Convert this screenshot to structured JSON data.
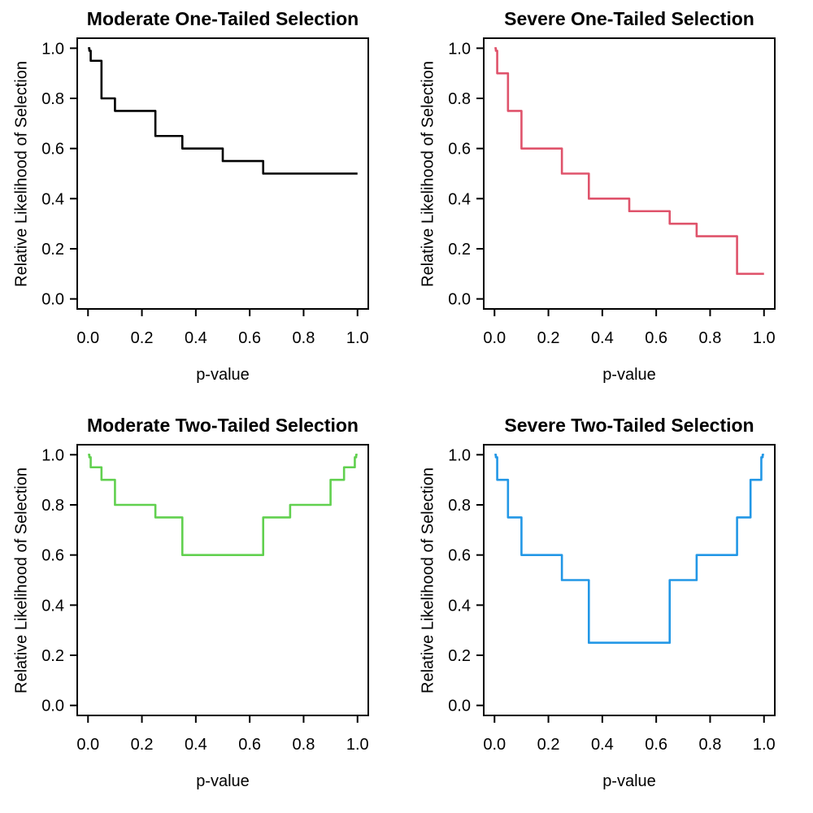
{
  "figure": {
    "background": "#ffffff",
    "grid_layout": "2x2",
    "shared_xlabel": "p-value",
    "shared_ylabel": "Relative Likelihood of Selection"
  },
  "chart_data": [
    {
      "type": "line",
      "subtype": "step",
      "title": "Moderate One-Tailed Selection",
      "xlabel": "p-value",
      "ylabel": "Relative Likelihood of Selection",
      "color": "#000000",
      "xlim": [
        0,
        1
      ],
      "ylim": [
        0,
        1
      ],
      "grid": false,
      "legend": "none",
      "xtick_values": [
        0,
        0.2,
        0.4,
        0.6,
        0.8,
        1.0
      ],
      "xtick_labels": [
        "0.0",
        "0.2",
        "0.4",
        "0.6",
        "0.8",
        "1.0"
      ],
      "ytick_values": [
        0,
        0.2,
        0.4,
        0.6,
        0.8,
        1.0
      ],
      "ytick_labels": [
        "0.0",
        "0.2",
        "0.4",
        "0.6",
        "0.8",
        "1.0"
      ],
      "p_cutpoints": [
        0,
        0.005,
        0.01,
        0.05,
        0.1,
        0.25,
        0.35,
        0.5,
        0.65,
        0.75,
        0.9,
        0.95,
        0.99,
        0.995,
        1.0
      ],
      "weights": [
        1.0,
        0.99,
        0.95,
        0.8,
        0.75,
        0.65,
        0.6,
        0.55,
        0.5,
        0.5,
        0.5,
        0.5,
        0.5,
        0.5
      ]
    },
    {
      "type": "line",
      "subtype": "step",
      "title": "Severe One-Tailed Selection",
      "xlabel": "p-value",
      "ylabel": "Relative Likelihood of Selection",
      "color": "#DF536B",
      "xlim": [
        0,
        1
      ],
      "ylim": [
        0,
        1
      ],
      "grid": false,
      "legend": "none",
      "xtick_values": [
        0,
        0.2,
        0.4,
        0.6,
        0.8,
        1.0
      ],
      "xtick_labels": [
        "0.0",
        "0.2",
        "0.4",
        "0.6",
        "0.8",
        "1.0"
      ],
      "ytick_values": [
        0,
        0.2,
        0.4,
        0.6,
        0.8,
        1.0
      ],
      "ytick_labels": [
        "0.0",
        "0.2",
        "0.4",
        "0.6",
        "0.8",
        "1.0"
      ],
      "p_cutpoints": [
        0,
        0.005,
        0.01,
        0.05,
        0.1,
        0.25,
        0.35,
        0.5,
        0.65,
        0.75,
        0.9,
        0.95,
        0.99,
        0.995,
        1.0
      ],
      "weights": [
        1.0,
        0.99,
        0.9,
        0.75,
        0.6,
        0.5,
        0.4,
        0.35,
        0.3,
        0.25,
        0.1,
        0.1,
        0.1,
        0.1
      ]
    },
    {
      "type": "line",
      "subtype": "step",
      "title": "Moderate Two-Tailed Selection",
      "xlabel": "p-value",
      "ylabel": "Relative Likelihood of Selection",
      "color": "#61D04F",
      "xlim": [
        0,
        1
      ],
      "ylim": [
        0,
        1
      ],
      "grid": false,
      "legend": "none",
      "xtick_values": [
        0,
        0.2,
        0.4,
        0.6,
        0.8,
        1.0
      ],
      "xtick_labels": [
        "0.0",
        "0.2",
        "0.4",
        "0.6",
        "0.8",
        "1.0"
      ],
      "ytick_values": [
        0,
        0.2,
        0.4,
        0.6,
        0.8,
        1.0
      ],
      "ytick_labels": [
        "0.0",
        "0.2",
        "0.4",
        "0.6",
        "0.8",
        "1.0"
      ],
      "p_cutpoints": [
        0,
        0.005,
        0.01,
        0.05,
        0.1,
        0.25,
        0.35,
        0.5,
        0.65,
        0.75,
        0.9,
        0.95,
        0.99,
        0.995,
        1.0
      ],
      "weights": [
        1.0,
        0.99,
        0.95,
        0.9,
        0.8,
        0.75,
        0.6,
        0.6,
        0.75,
        0.8,
        0.9,
        0.95,
        0.99,
        1.0
      ]
    },
    {
      "type": "line",
      "subtype": "step",
      "title": "Severe Two-Tailed Selection",
      "xlabel": "p-value",
      "ylabel": "Relative Likelihood of Selection",
      "color": "#2297E6",
      "xlim": [
        0,
        1
      ],
      "ylim": [
        0,
        1
      ],
      "grid": false,
      "legend": "none",
      "xtick_values": [
        0,
        0.2,
        0.4,
        0.6,
        0.8,
        1.0
      ],
      "xtick_labels": [
        "0.0",
        "0.2",
        "0.4",
        "0.6",
        "0.8",
        "1.0"
      ],
      "ytick_values": [
        0,
        0.2,
        0.4,
        0.6,
        0.8,
        1.0
      ],
      "ytick_labels": [
        "0.0",
        "0.2",
        "0.4",
        "0.6",
        "0.8",
        "1.0"
      ],
      "p_cutpoints": [
        0,
        0.005,
        0.01,
        0.05,
        0.1,
        0.25,
        0.35,
        0.5,
        0.65,
        0.75,
        0.9,
        0.95,
        0.99,
        0.995,
        1.0
      ],
      "weights": [
        1.0,
        0.99,
        0.9,
        0.75,
        0.6,
        0.5,
        0.25,
        0.25,
        0.5,
        0.6,
        0.75,
        0.9,
        0.99,
        1.0
      ]
    }
  ]
}
